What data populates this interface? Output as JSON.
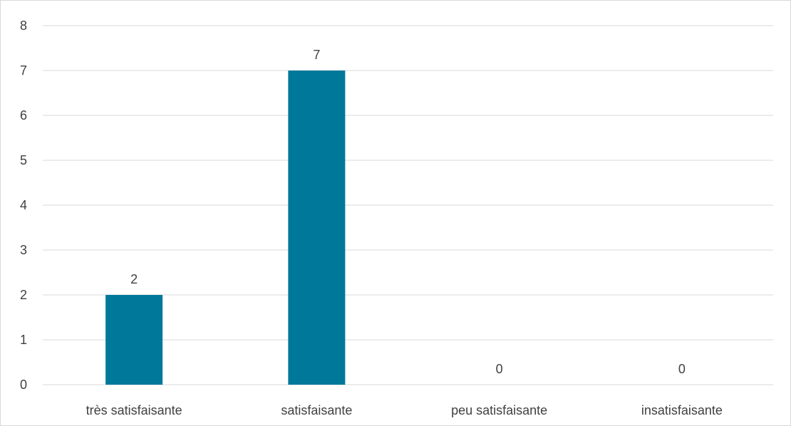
{
  "chart_data": {
    "type": "bar",
    "categories": [
      "très satisfaisante",
      "satisfaisante",
      "peu satisfaisante",
      "insatisfaisante"
    ],
    "values": [
      2,
      7,
      0,
      0
    ],
    "data_labels": [
      "2",
      "7",
      "0",
      "0"
    ],
    "title": "",
    "xlabel": "",
    "ylabel": "",
    "ylim": [
      0,
      8
    ],
    "yticks": [
      0,
      1,
      2,
      3,
      4,
      5,
      6,
      7,
      8
    ],
    "grid": "horizontal",
    "legend": "none",
    "bar_color": "#00789A",
    "gridline_color": "#D9D9D9",
    "text_color": "#404040"
  }
}
